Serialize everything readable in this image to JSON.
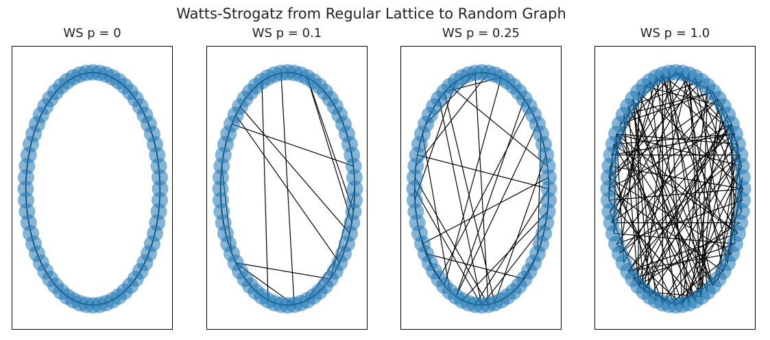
{
  "figure": {
    "title": "Watts-Strogatz from Regular Lattice to Random Graph",
    "node_color": "#1f77b4",
    "edge_color": "#000000",
    "node_alpha": 0.55
  },
  "panels": [
    {
      "title": "WS p = 0",
      "p": 0,
      "n_nodes": 64,
      "n_rewired_edges": 0
    },
    {
      "title": "WS p = 0.1",
      "p": 0.1,
      "n_nodes": 64,
      "n_rewired_edges": 12
    },
    {
      "title": "WS p = 0.25",
      "p": 0.25,
      "n_nodes": 64,
      "n_rewired_edges": 26
    },
    {
      "title": "WS p = 1.0",
      "p": 1.0,
      "n_nodes": 64,
      "n_rewired_edges": 140
    }
  ]
}
